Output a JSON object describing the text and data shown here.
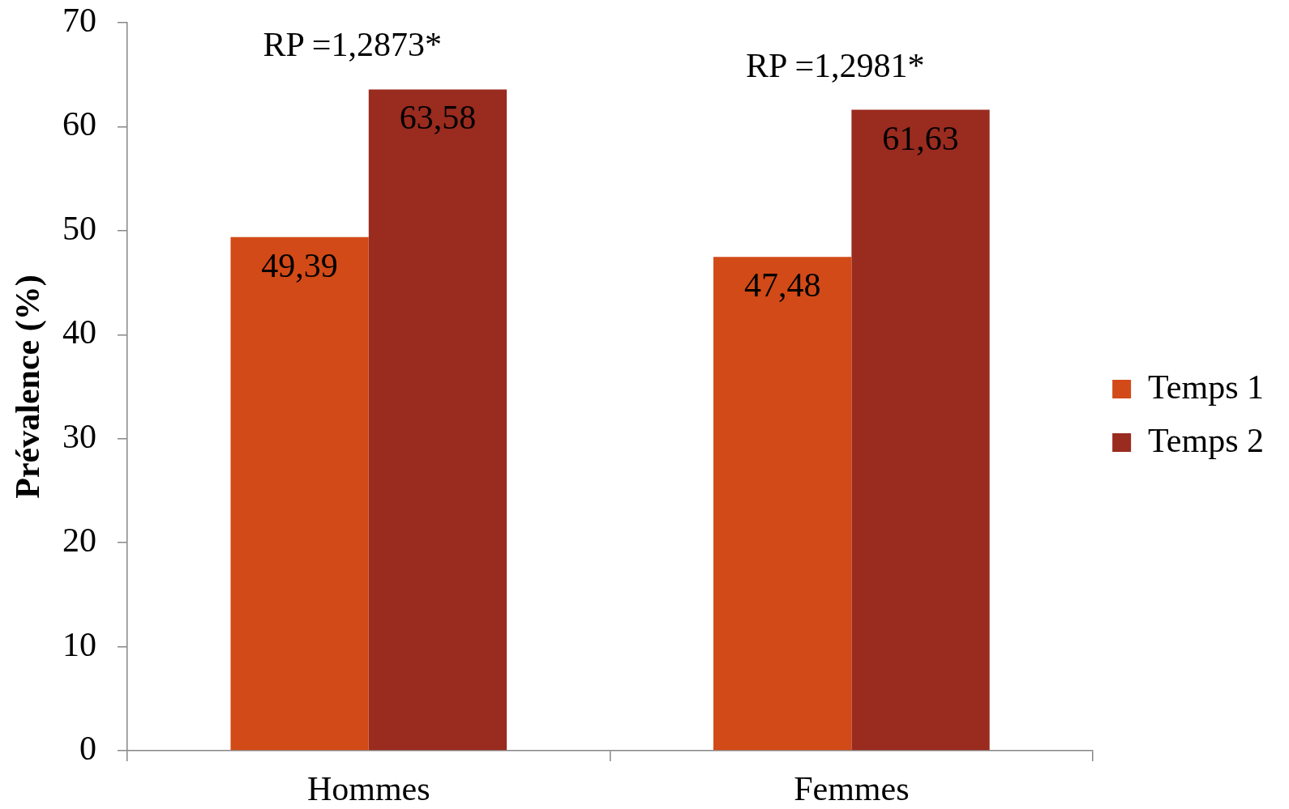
{
  "chart_data": {
    "type": "bar",
    "categories": [
      "Hommes",
      "Femmes"
    ],
    "series": [
      {
        "name": "Temps 1",
        "color": "#d24a18",
        "values": [
          49.39,
          47.48
        ],
        "value_labels": [
          "49,39",
          "47,48"
        ]
      },
      {
        "name": "Temps 2",
        "color": "#9a2b1f",
        "values": [
          63.58,
          61.63
        ],
        "value_labels": [
          "63,58",
          "61,63"
        ]
      }
    ],
    "ylabel": "Prévalence (%)",
    "ylim": [
      0,
      70
    ],
    "yticks": [
      0,
      10,
      20,
      30,
      40,
      50,
      60,
      70
    ],
    "grid": false,
    "legend": "right",
    "annotations": [
      "RP =1,2873*",
      "RP =1,2981*"
    ]
  }
}
